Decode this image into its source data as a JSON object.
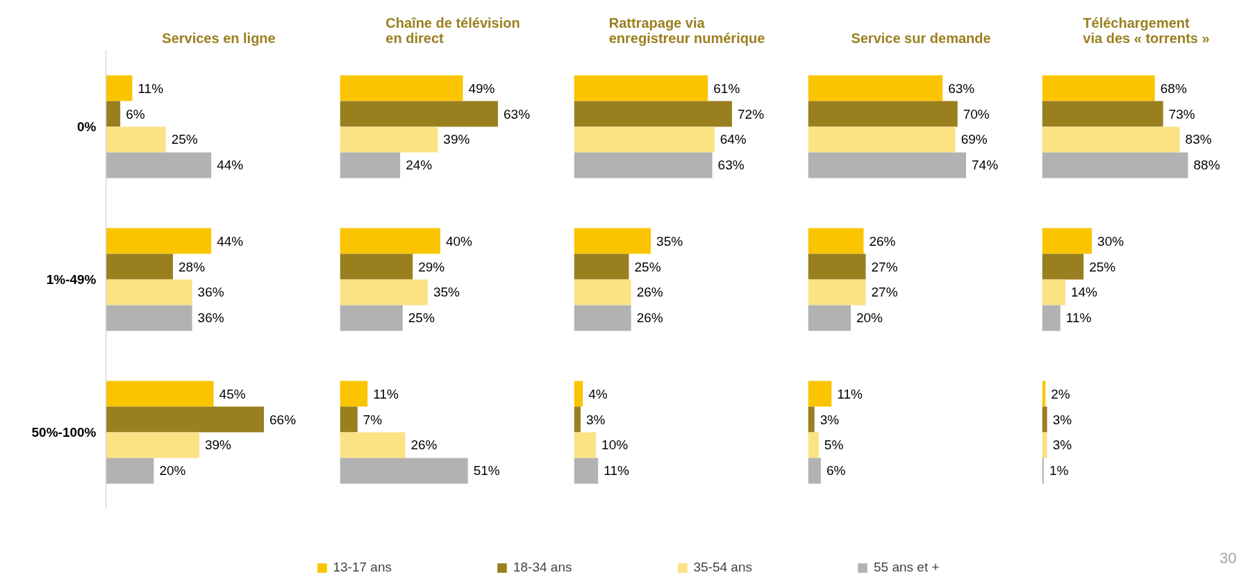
{
  "chart_data": [
    {
      "type": "bar",
      "orientation": "horizontal",
      "title": "Services en ligne",
      "categories": [
        "0%",
        "1%-49%",
        "50%-100%"
      ],
      "tick_labels": "y",
      "legend": "bottom",
      "series": [
        {
          "name": "13-17 ans",
          "color": "#fac500",
          "values": [
            11,
            44,
            45
          ],
          "value_labels": [
            "11%",
            "44%",
            "45%"
          ]
        },
        {
          "name": "18-34 ans",
          "color": "#9a7f1f",
          "values": [
            6,
            28,
            66
          ],
          "value_labels": [
            "6%",
            "28%",
            "66%"
          ]
        },
        {
          "name": "35-54 ans",
          "color": "#fbe283",
          "values": [
            25,
            36,
            39
          ],
          "value_labels": [
            "25%",
            "36%",
            "39%"
          ]
        },
        {
          "name": "55 ans et +",
          "color": "#b2b2b2",
          "values": [
            44,
            36,
            20
          ],
          "value_labels": [
            "44%",
            "36%",
            "20%"
          ]
        }
      ]
    },
    {
      "type": "bar",
      "orientation": "horizontal",
      "title": "Chaîne de télévision\nen direct",
      "tick_labels": false,
      "series": [
        {
          "color": "#fac500",
          "values": [
            49,
            40,
            11
          ],
          "value_labels": [
            "49%",
            "40%",
            "11%"
          ]
        },
        {
          "color": "#9a7f1f",
          "values": [
            63,
            29,
            7
          ],
          "value_labels": [
            "63%",
            "29%",
            "7%"
          ]
        },
        {
          "color": "#fbe283",
          "values": [
            39,
            35,
            26
          ],
          "value_labels": [
            "39%",
            "35%",
            "26%"
          ]
        },
        {
          "color": "#b2b2b2",
          "values": [
            24,
            25,
            51
          ],
          "value_labels": [
            "24%",
            "25%",
            "51%"
          ]
        }
      ]
    },
    {
      "type": "bar",
      "orientation": "horizontal",
      "title": "Rattrapage via\nenregistreur numérique",
      "tick_labels": false,
      "series": [
        {
          "color": "#fac500",
          "values": [
            61,
            35,
            4
          ],
          "value_labels": [
            "61%",
            "35%",
            "4%"
          ]
        },
        {
          "color": "#9a7f1f",
          "values": [
            72,
            25,
            3
          ],
          "value_labels": [
            "72%",
            "25%",
            "3%"
          ]
        },
        {
          "color": "#fbe283",
          "values": [
            64,
            26,
            10
          ],
          "value_labels": [
            "64%",
            "26%",
            "10%"
          ]
        },
        {
          "color": "#b2b2b2",
          "values": [
            63,
            26,
            11
          ],
          "value_labels": [
            "63%",
            "26%",
            "11%"
          ]
        }
      ]
    },
    {
      "type": "bar",
      "orientation": "horizontal",
      "title": "Service sur demande",
      "tick_labels": false,
      "series": [
        {
          "color": "#fac500",
          "values": [
            63,
            26,
            11
          ],
          "value_labels": [
            "63%",
            "26%",
            "11%"
          ]
        },
        {
          "color": "#9a7f1f",
          "values": [
            70,
            27,
            3
          ],
          "value_labels": [
            "70%",
            "27%",
            "3%"
          ]
        },
        {
          "color": "#fbe283",
          "values": [
            69,
            27,
            5
          ],
          "value_labels": [
            "69%",
            "27%",
            "5%"
          ]
        },
        {
          "color": "#b2b2b2",
          "values": [
            74,
            20,
            6
          ],
          "value_labels": [
            "74%",
            "20%",
            "6%"
          ]
        }
      ]
    },
    {
      "type": "bar",
      "orientation": "horizontal",
      "title": "Téléchargement\nvia des « torrents »",
      "tick_labels": false,
      "annotations": [
        "30"
      ],
      "series": [
        {
          "color": "#fac500",
          "values": [
            68,
            30,
            2
          ],
          "value_labels": [
            "68%",
            "30%",
            "2%"
          ]
        },
        {
          "color": "#9a7f1f",
          "values": [
            73,
            25,
            3
          ],
          "value_labels": [
            "73%",
            "25%",
            "3%"
          ]
        },
        {
          "color": "#fbe283",
          "values": [
            83,
            14,
            3
          ],
          "value_labels": [
            "83%",
            "14%",
            "3%"
          ]
        },
        {
          "color": "#b2b2b2",
          "values": [
            88,
            11,
            1
          ],
          "value_labels": [
            "88%",
            "11%",
            "1%"
          ]
        }
      ]
    }
  ]
}
